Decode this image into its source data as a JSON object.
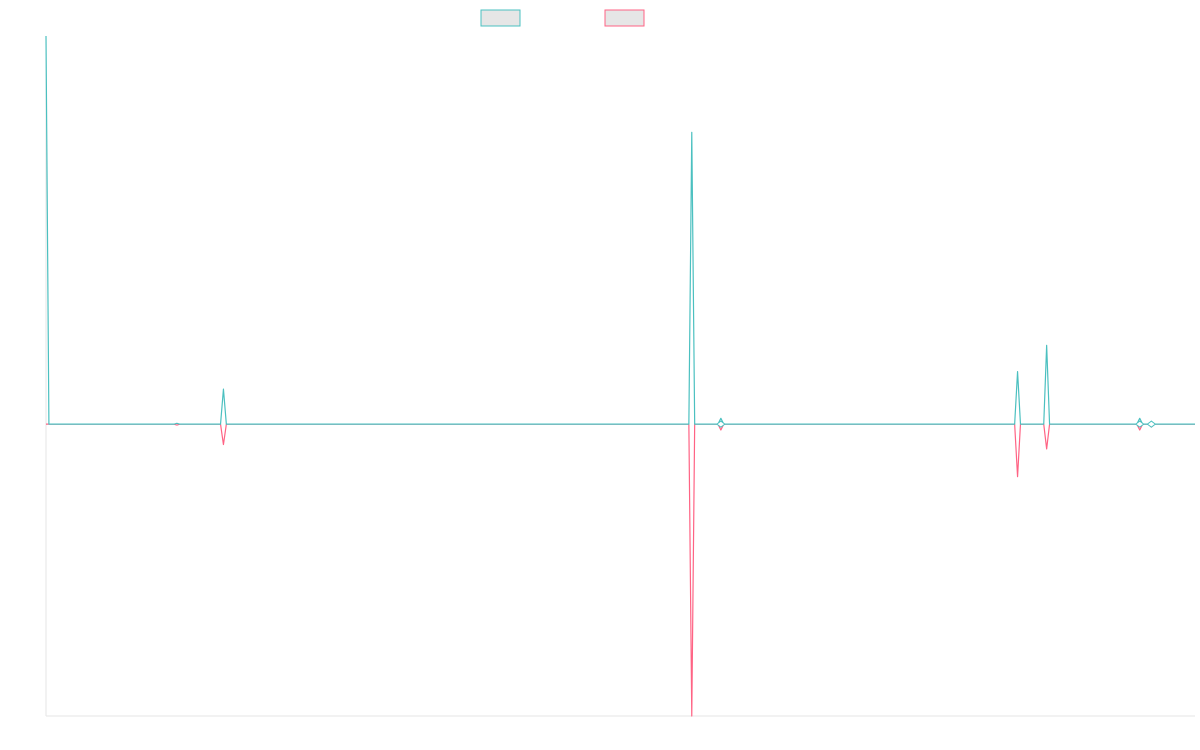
{
  "chart_data": {
    "type": "line",
    "title": "",
    "xlabel": "",
    "ylabel": "",
    "x_count": 396,
    "ylim": [
      -1,
      1.33
    ],
    "grid": false,
    "legend_position": "top-center",
    "series": [
      {
        "name": "",
        "color": "#4bc0c0",
        "fill": "#e6e6e6",
        "points": [
          {
            "x": 0,
            "y": 1.33
          },
          {
            "x": 1,
            "y": 0
          },
          {
            "x": 44,
            "y": 0
          },
          {
            "x": 45,
            "y": 0.003
          },
          {
            "x": 46,
            "y": 0
          },
          {
            "x": 60,
            "y": 0
          },
          {
            "x": 61,
            "y": 0.12
          },
          {
            "x": 62,
            "y": 0
          },
          {
            "x": 221,
            "y": 0
          },
          {
            "x": 222,
            "y": 1.0
          },
          {
            "x": 223,
            "y": 0
          },
          {
            "x": 231,
            "y": 0
          },
          {
            "x": 232,
            "y": 0.02
          },
          {
            "x": 233,
            "y": 0
          },
          {
            "x": 333,
            "y": 0
          },
          {
            "x": 334,
            "y": 0.18
          },
          {
            "x": 335,
            "y": 0
          },
          {
            "x": 343,
            "y": 0
          },
          {
            "x": 344,
            "y": 0.27
          },
          {
            "x": 345,
            "y": 0
          },
          {
            "x": 375,
            "y": 0
          },
          {
            "x": 376,
            "y": 0.02
          },
          {
            "x": 377,
            "y": 0
          },
          {
            "x": 379,
            "y": 0
          },
          {
            "x": 380,
            "y": 0.01
          },
          {
            "x": 381,
            "y": 0
          },
          {
            "x": 395,
            "y": 0
          }
        ]
      },
      {
        "name": "",
        "color": "#ff6384",
        "fill": "#e6e6e6",
        "points": [
          {
            "x": 0,
            "y": 0
          },
          {
            "x": 44,
            "y": 0
          },
          {
            "x": 45,
            "y": -0.003
          },
          {
            "x": 46,
            "y": 0
          },
          {
            "x": 60,
            "y": 0
          },
          {
            "x": 61,
            "y": -0.07
          },
          {
            "x": 62,
            "y": 0
          },
          {
            "x": 221,
            "y": 0
          },
          {
            "x": 222,
            "y": -1.0
          },
          {
            "x": 223,
            "y": 0
          },
          {
            "x": 231,
            "y": 0
          },
          {
            "x": 232,
            "y": -0.02
          },
          {
            "x": 233,
            "y": 0
          },
          {
            "x": 333,
            "y": 0
          },
          {
            "x": 334,
            "y": -0.18
          },
          {
            "x": 335,
            "y": 0
          },
          {
            "x": 343,
            "y": 0
          },
          {
            "x": 344,
            "y": -0.085
          },
          {
            "x": 345,
            "y": 0
          },
          {
            "x": 375,
            "y": 0
          },
          {
            "x": 376,
            "y": -0.02
          },
          {
            "x": 377,
            "y": 0
          },
          {
            "x": 379,
            "y": 0
          },
          {
            "x": 380,
            "y": -0.01
          },
          {
            "x": 381,
            "y": 0
          },
          {
            "x": 395,
            "y": 0
          }
        ]
      }
    ]
  }
}
